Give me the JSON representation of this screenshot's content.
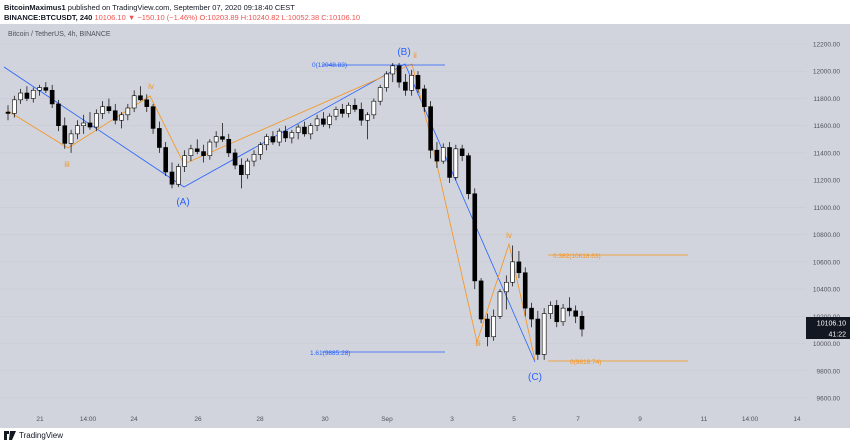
{
  "header": {
    "line1_user": "BitcoinMaximus1",
    "line1_rest": " published on TradingView.com, September 07, 2020 09:18:40 CEST",
    "line2_symbol": "BINANCE:BTCUSDT, 240",
    "line2_price": "10106.10",
    "line2_change": "▼ −150.10 (−1.46%)",
    "line2_ohlc": "O:10203.89 H:10240.82 L:10052.38 C:10106.10"
  },
  "chart_label": "Bitcoin / TetherUS, 4h, BINANCE",
  "footer": {
    "brand": "TradingView"
  },
  "colors": {
    "background": "#d1d4dc",
    "candle": "#000000",
    "blue": "#2962ff",
    "orange": "#f7931a",
    "grid": "#c4c7d0"
  },
  "chart_data": {
    "type": "candlestick",
    "ylim": [
      9400,
      12400
    ],
    "yticks": [
      "12200.00",
      "12000.00",
      "11800.00",
      "11600.00",
      "11400.00",
      "11200.00",
      "11000.00",
      "10800.00",
      "10600.00",
      "10400.00",
      "10200.00",
      "10000.00",
      "9800.00",
      "9600.00"
    ],
    "xticks": [
      "21",
      "14:00",
      "24",
      "26",
      "28",
      "30",
      "Sep",
      "3",
      "5",
      "7",
      "9",
      "11",
      "14:00",
      "14"
    ],
    "last_price": "10106.10",
    "countdown": "41:22",
    "candles": [
      [
        11700,
        11750,
        11640,
        11690
      ],
      [
        11690,
        11820,
        11660,
        11790
      ],
      [
        11790,
        11870,
        11760,
        11840
      ],
      [
        11840,
        11890,
        11780,
        11800
      ],
      [
        11800,
        11880,
        11770,
        11860
      ],
      [
        11860,
        11900,
        11820,
        11880
      ],
      [
        11880,
        11920,
        11840,
        11860
      ],
      [
        11860,
        11900,
        11730,
        11760
      ],
      [
        11760,
        11790,
        11560,
        11600
      ],
      [
        11600,
        11660,
        11430,
        11470
      ],
      [
        11470,
        11570,
        11400,
        11540
      ],
      [
        11540,
        11640,
        11500,
        11600
      ],
      [
        11600,
        11680,
        11540,
        11620
      ],
      [
        11620,
        11700,
        11570,
        11590
      ],
      [
        11590,
        11720,
        11560,
        11690
      ],
      [
        11690,
        11780,
        11650,
        11740
      ],
      [
        11740,
        11800,
        11690,
        11710
      ],
      [
        11710,
        11760,
        11610,
        11640
      ],
      [
        11640,
        11700,
        11580,
        11680
      ],
      [
        11680,
        11760,
        11640,
        11730
      ],
      [
        11730,
        11860,
        11700,
        11820
      ],
      [
        11820,
        11890,
        11780,
        11790
      ],
      [
        11790,
        11830,
        11700,
        11740
      ],
      [
        11740,
        11760,
        11540,
        11580
      ],
      [
        11580,
        11630,
        11400,
        11440
      ],
      [
        11440,
        11480,
        11230,
        11260
      ],
      [
        11260,
        11330,
        11140,
        11170
      ],
      [
        11170,
        11320,
        11150,
        11300
      ],
      [
        11300,
        11420,
        11260,
        11380
      ],
      [
        11380,
        11460,
        11340,
        11430
      ],
      [
        11430,
        11500,
        11390,
        11410
      ],
      [
        11410,
        11460,
        11330,
        11380
      ],
      [
        11380,
        11500,
        11350,
        11480
      ],
      [
        11480,
        11560,
        11440,
        11520
      ],
      [
        11520,
        11620,
        11480,
        11500
      ],
      [
        11500,
        11540,
        11370,
        11400
      ],
      [
        11400,
        11430,
        11280,
        11310
      ],
      [
        11310,
        11360,
        11140,
        11240
      ],
      [
        11240,
        11360,
        11210,
        11340
      ],
      [
        11340,
        11420,
        11300,
        11390
      ],
      [
        11390,
        11480,
        11350,
        11460
      ],
      [
        11460,
        11540,
        11420,
        11520
      ],
      [
        11520,
        11560,
        11460,
        11480
      ],
      [
        11480,
        11580,
        11450,
        11560
      ],
      [
        11560,
        11600,
        11480,
        11510
      ],
      [
        11510,
        11570,
        11470,
        11550
      ],
      [
        11550,
        11610,
        11500,
        11590
      ],
      [
        11590,
        11630,
        11520,
        11540
      ],
      [
        11540,
        11620,
        11500,
        11600
      ],
      [
        11600,
        11680,
        11560,
        11650
      ],
      [
        11650,
        11700,
        11590,
        11610
      ],
      [
        11610,
        11690,
        11580,
        11670
      ],
      [
        11670,
        11740,
        11640,
        11720
      ],
      [
        11720,
        11760,
        11660,
        11690
      ],
      [
        11690,
        11770,
        11660,
        11750
      ],
      [
        11750,
        11800,
        11700,
        11720
      ],
      [
        11720,
        11770,
        11600,
        11640
      ],
      [
        11640,
        11700,
        11500,
        11680
      ],
      [
        11680,
        11800,
        11650,
        11780
      ],
      [
        11780,
        11900,
        11750,
        11880
      ],
      [
        11880,
        12000,
        11850,
        11980
      ],
      [
        11980,
        12060,
        11920,
        12040
      ],
      [
        12040,
        12060,
        11880,
        11920
      ],
      [
        11920,
        11980,
        11820,
        11860
      ],
      [
        11860,
        12010,
        11820,
        11970
      ],
      [
        11970,
        12000,
        11840,
        11870
      ],
      [
        11870,
        11900,
        11700,
        11740
      ],
      [
        11740,
        11780,
        11360,
        11420
      ],
      [
        11420,
        11480,
        11290,
        11340
      ],
      [
        11340,
        11470,
        11320,
        11440
      ],
      [
        11440,
        11480,
        11180,
        11220
      ],
      [
        11220,
        11460,
        11200,
        11430
      ],
      [
        11430,
        11460,
        11340,
        11380
      ],
      [
        11380,
        11400,
        11060,
        11100
      ],
      [
        11100,
        11140,
        10400,
        10460
      ],
      [
        10460,
        10480,
        10150,
        10180
      ],
      [
        10180,
        10220,
        9980,
        10050
      ],
      [
        10050,
        10250,
        10020,
        10200
      ],
      [
        10200,
        10400,
        10180,
        10380
      ],
      [
        10380,
        10500,
        10250,
        10450
      ],
      [
        10450,
        10720,
        10420,
        10600
      ],
      [
        10600,
        10680,
        10480,
        10520
      ],
      [
        10520,
        10560,
        10200,
        10260
      ],
      [
        10260,
        10300,
        10120,
        10180
      ],
      [
        10180,
        10240,
        9880,
        9920
      ],
      [
        9920,
        10260,
        9880,
        10220
      ],
      [
        10220,
        10310,
        10180,
        10280
      ],
      [
        10280,
        10320,
        10120,
        10160
      ],
      [
        10160,
        10290,
        10130,
        10260
      ],
      [
        10260,
        10340,
        10200,
        10240
      ],
      [
        10240,
        10280,
        10150,
        10200
      ],
      [
        10200,
        10240,
        10052,
        10106
      ]
    ],
    "blue_wave_labels": [
      "(A)",
      "(B)",
      "(C)"
    ],
    "orange_wave_labels": [
      "iii",
      "iv",
      "ii",
      "iii",
      "iv"
    ],
    "fib_labels": {
      "blue_top": "0(12048.83)",
      "blue_bottom": "1.61(9885.28)",
      "orange_top": "0.382(10618.63)",
      "orange_bottom": "0(9818.74)"
    },
    "fib_values": {
      "blue_top": 12048.83,
      "blue_bottom": 9885.28,
      "orange_top": 10618.63,
      "orange_bottom": 9818.74
    }
  }
}
